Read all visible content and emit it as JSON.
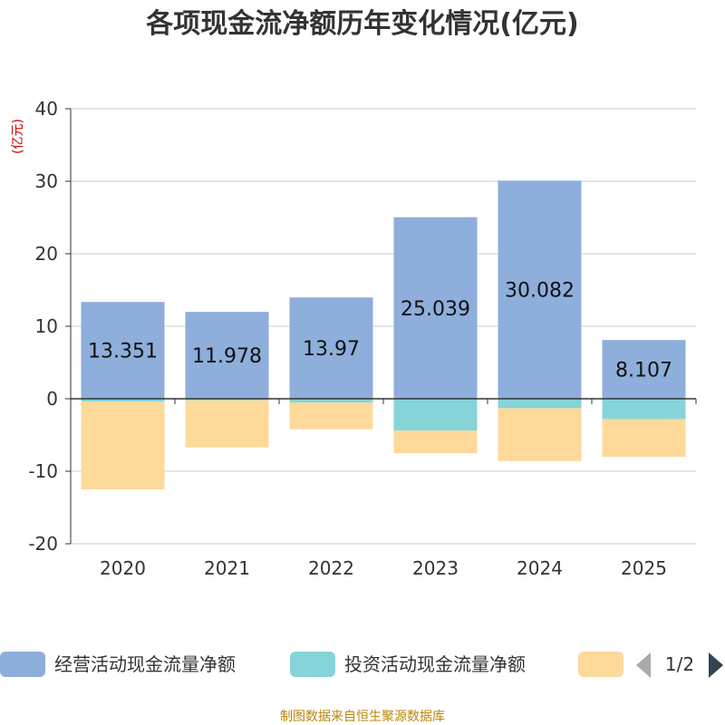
{
  "chart_data": {
    "type": "bar",
    "stacked": true,
    "title": "各项现金流净额历年变化情况(亿元)",
    "ylabel": "(亿元)",
    "ylim": [
      -20,
      40
    ],
    "yticks": [
      40,
      30,
      20,
      10,
      0,
      -10,
      -20
    ],
    "categories": [
      "2020",
      "2021",
      "2022",
      "2023",
      "2024",
      "2025"
    ],
    "series": [
      {
        "name": "经营活动现金流量净额",
        "color": "#8eaedb",
        "values": [
          13.351,
          11.978,
          13.97,
          25.039,
          30.082,
          8.107
        ],
        "labels": [
          "13.351",
          "11.978",
          "13.97",
          "25.039",
          "30.082",
          "8.107"
        ]
      },
      {
        "name": "投资活动现金流量净额",
        "color": "#86d4d8",
        "values": [
          -0.4,
          -0.2,
          -0.5,
          -4.4,
          -1.3,
          -2.8
        ]
      },
      {
        "name": "",
        "color": "#fdd99a",
        "values": [
          -12.1,
          -6.5,
          -3.7,
          -3.1,
          -7.3,
          -5.2
        ]
      }
    ],
    "legend": {
      "placement": "bottom",
      "page": "1/2"
    },
    "source": "制图数据来自恒生聚源数据库"
  }
}
